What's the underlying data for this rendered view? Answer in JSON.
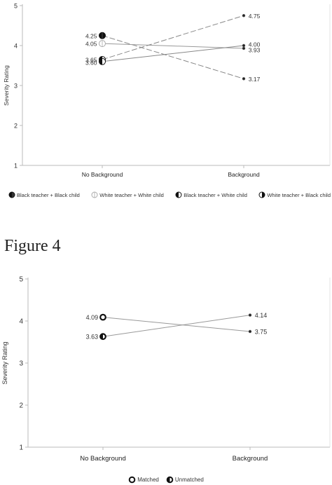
{
  "chart_data": [
    {
      "type": "line",
      "ylabel": "Severity Rating",
      "xlabel": "",
      "categories": [
        "No Background",
        "Background"
      ],
      "ylim": [
        1,
        5
      ],
      "yticks": [
        "1",
        "2",
        "3",
        "4",
        "5"
      ],
      "grid": false,
      "legend_position": "bottom",
      "series": [
        {
          "name": "Black teacher + Black child",
          "values": [
            4.25,
            3.17
          ],
          "labels": [
            "4.25",
            "3.17"
          ],
          "marker": "half-left-black",
          "color": "#888888"
        },
        {
          "name": "White teacher + White child",
          "values": [
            4.05,
            3.93
          ],
          "labels": [
            "4.05",
            "3.93"
          ],
          "marker": "open",
          "color": "#999999"
        },
        {
          "name": "Black teacher + White child",
          "values": [
            3.65,
            4.75
          ],
          "labels": [
            "3.65",
            "4.75"
          ],
          "marker": "half-right-black",
          "color": "#888888"
        },
        {
          "name": "White teacher + Black child",
          "values": [
            3.6,
            4.0
          ],
          "labels": [
            "3.60",
            "4.00"
          ],
          "marker": "half-right-black",
          "color": "#888888"
        }
      ]
    },
    {
      "type": "line",
      "ylabel": "Severity Rating",
      "xlabel": "",
      "categories": [
        "No Background",
        "Background"
      ],
      "ylim": [
        1,
        5
      ],
      "yticks": [
        "1",
        "2",
        "3",
        "4",
        "5"
      ],
      "grid": false,
      "legend_position": "bottom",
      "series": [
        {
          "name": "Matched",
          "values": [
            4.09,
            3.75
          ],
          "labels": [
            "4.09",
            "3.75"
          ],
          "marker": "ring",
          "color": "#999999"
        },
        {
          "name": "Unmatched",
          "values": [
            3.63,
            4.14
          ],
          "labels": [
            "3.63",
            "4.14"
          ],
          "marker": "half-left-ring",
          "color": "#999999"
        }
      ]
    }
  ],
  "figure_caption": "Figure 4"
}
